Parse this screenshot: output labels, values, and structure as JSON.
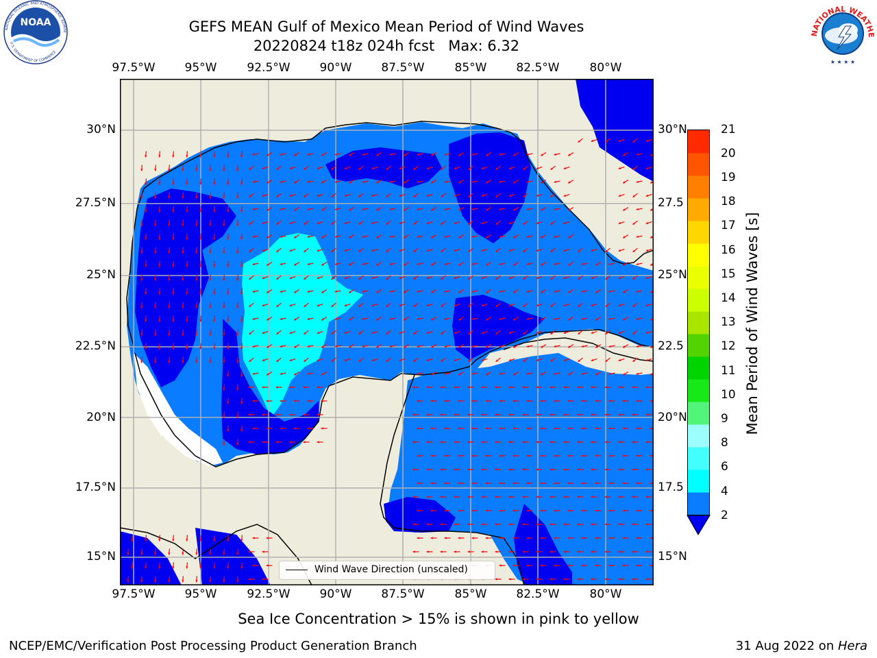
{
  "header": {
    "title_line1": "GEFS MEAN Gulf of Mexico Mean Period of Wind Waves",
    "title_line2": "20220824 t18z 024h fcst   Max: 6.32"
  },
  "logos": {
    "left": {
      "icon": "noaa-logo",
      "text": "NOAA",
      "ring_text": "NATIONAL OCEANIC AND ATMOSPHERIC ADMINISTRATION · U.S. DEPARTMENT OF COMMERCE"
    },
    "right": {
      "icon": "nws-logo",
      "ring_text": "NATIONAL WEATHER SERVICE"
    }
  },
  "map": {
    "lon_ticks": [
      "97.5°W",
      "95°W",
      "92.5°W",
      "90°W",
      "87.5°W",
      "85°W",
      "82.5°W",
      "80°W"
    ],
    "lat_ticks": [
      "30°N",
      "27.5°N",
      "25°N",
      "22.5°N",
      "20°N",
      "17.5°N",
      "15°N"
    ],
    "lat_ticks_right": [
      "30°N",
      "27.5",
      "25°N",
      "22.5",
      "20°N",
      "17.5",
      "15°N"
    ],
    "legend_text": "Wind Wave Direction (unscaled)",
    "colors": {
      "land": "#eeecdc",
      "band_2_4": "#0a7cff",
      "band_lt2": "#0000f0",
      "band_4_6": "#00ffff",
      "band_6_8": "#7ffdf4",
      "arrow": "#ff0000",
      "grid": "#b0b0b0"
    }
  },
  "colorbar": {
    "label": "Mean Period of Wind Waves [s]",
    "tick_labels": [
      "2",
      "4",
      "6",
      "8",
      "9",
      "10",
      "11",
      "12",
      "13",
      "14",
      "15",
      "16",
      "17",
      "18",
      "19",
      "20",
      "21"
    ],
    "colors": [
      "#0a7cff",
      "#00ffff",
      "#44ffff",
      "#9cfffd",
      "#52f57a",
      "#17e817",
      "#00d400",
      "#52d400",
      "#a8e600",
      "#ccff00",
      "#eaff00",
      "#ffff00",
      "#ffd700",
      "#ffaa00",
      "#ff8000",
      "#ff5500",
      "#ff2a00",
      "#ff0000"
    ]
  },
  "footer": {
    "note": "Sea Ice Concentration > 15% is shown in pink to yellow",
    "left": "NCEP/EMC/Verification Post Processing Product Generation Branch",
    "right_prefix": "31 Aug 2022 on ",
    "right_machine": "Hera"
  }
}
